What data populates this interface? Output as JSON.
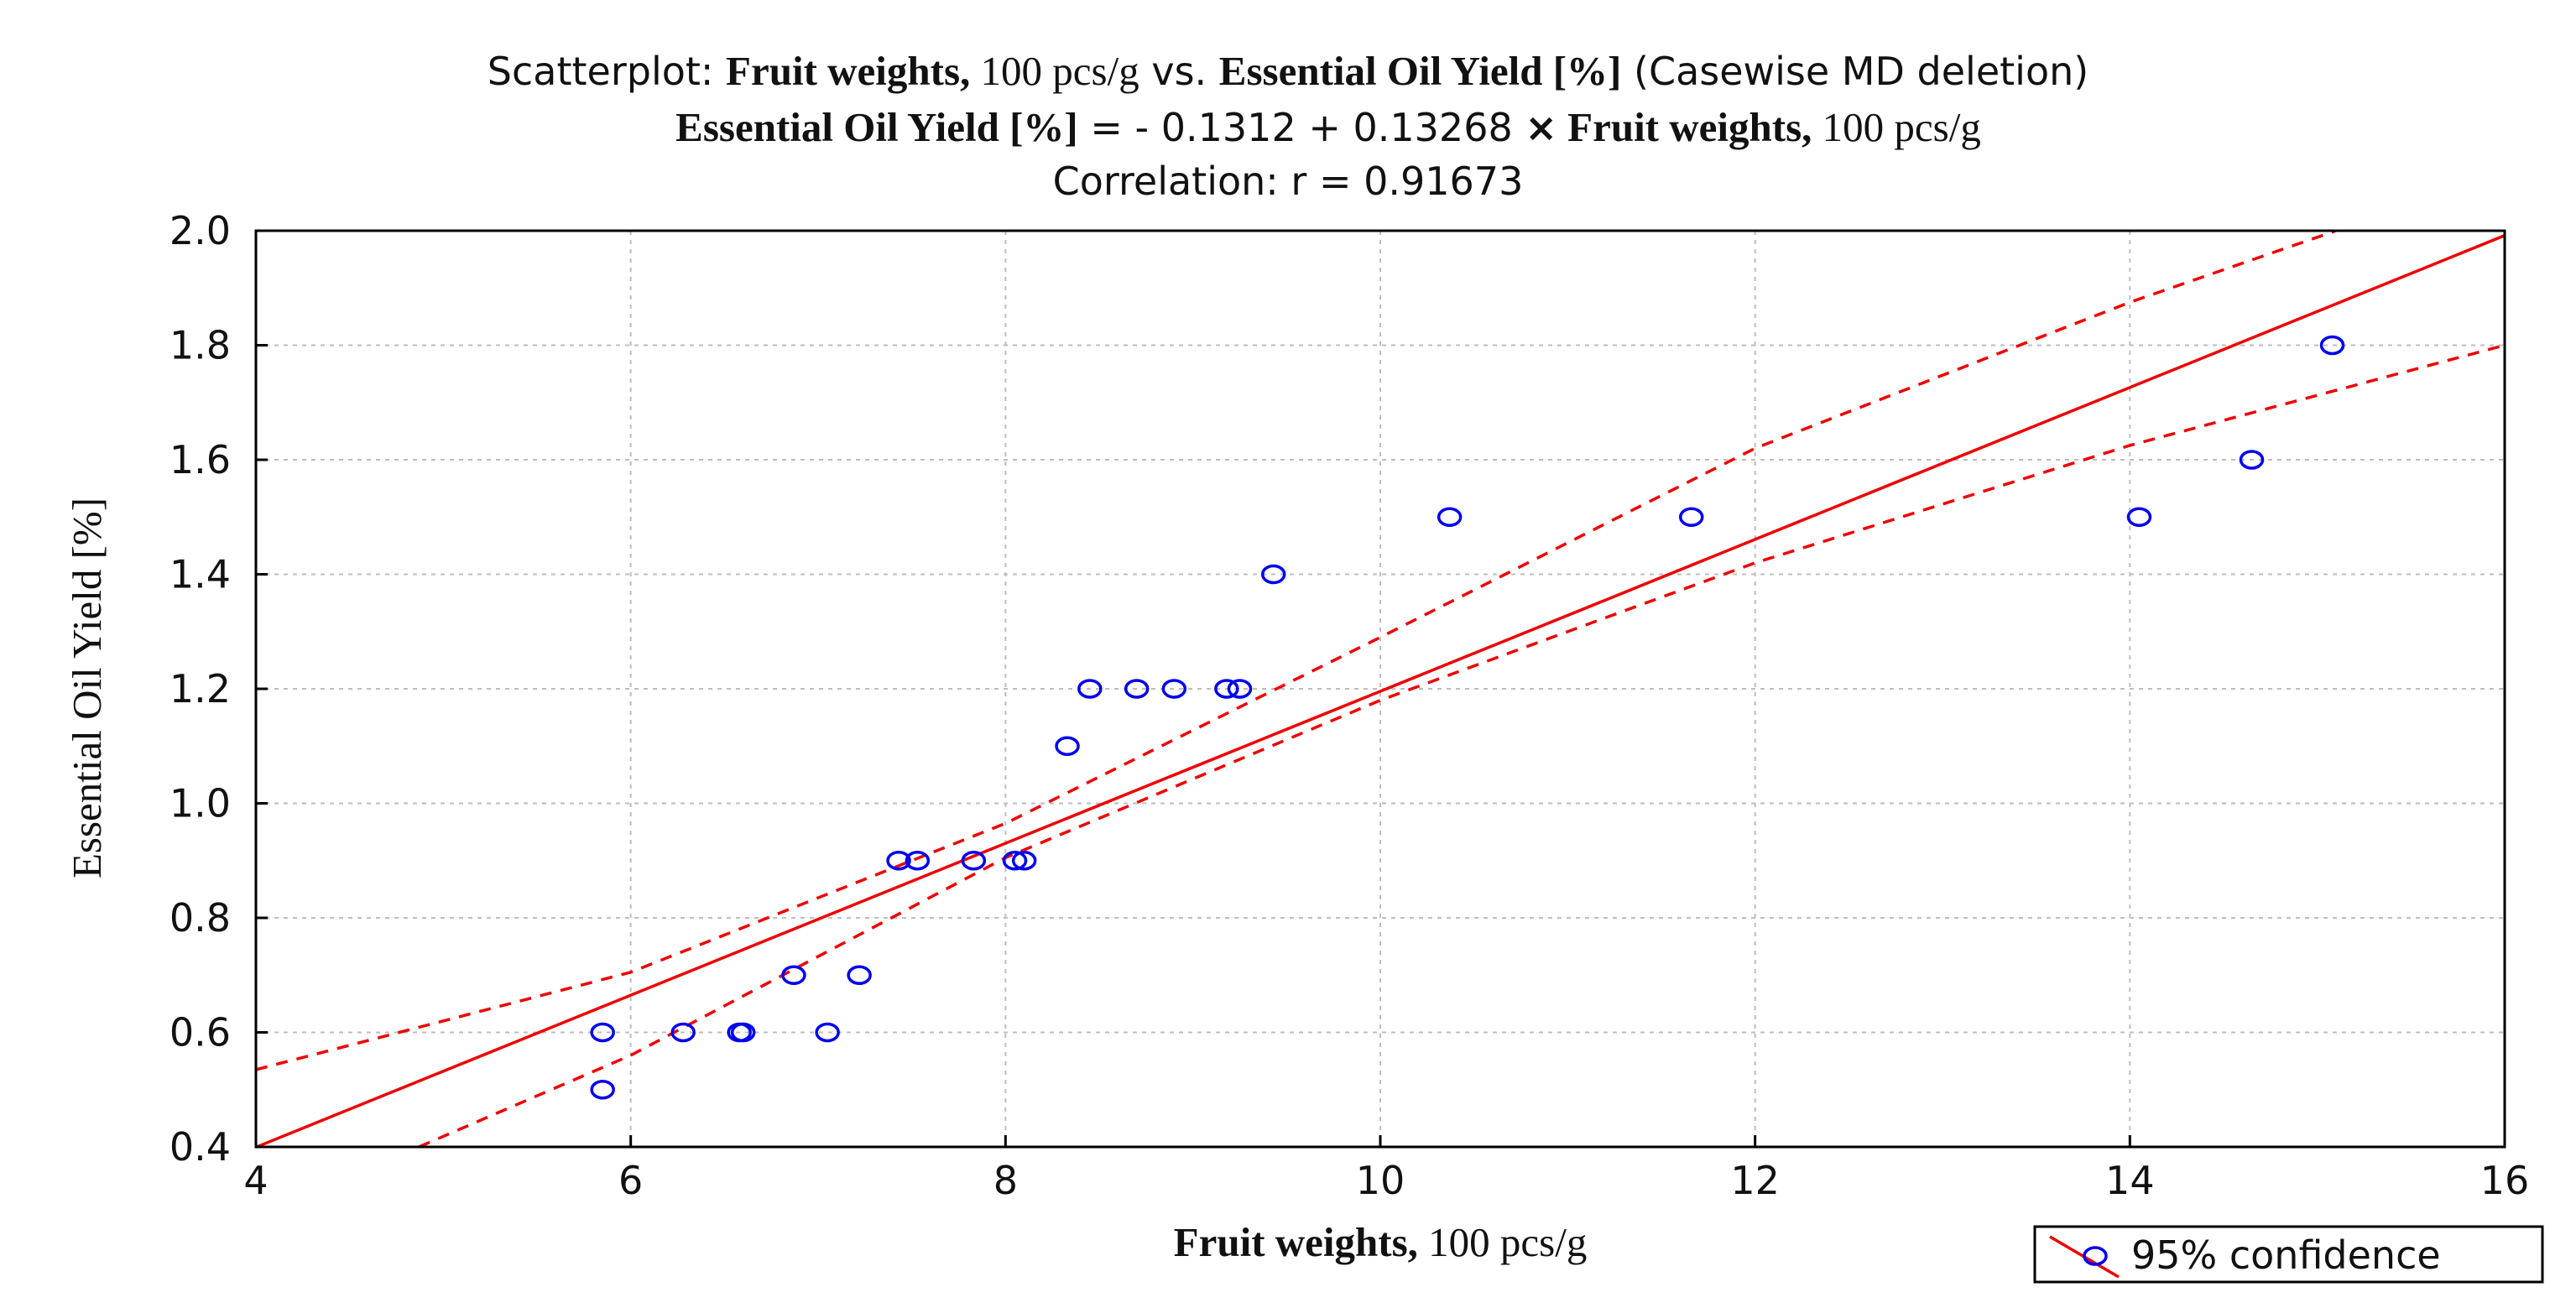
{
  "chart_data": {
    "type": "scatter",
    "title": {
      "prefix": "Scatterplot: ",
      "x_name_bold": "Fruit weights,",
      "x_name_rest": " 100 pcs/g",
      "mid": " vs. ",
      "y_name_bold": "Essential Oil Yield [%]",
      "suffix": " (Casewise MD deletion)"
    },
    "equation": {
      "lhs_bold": "Essential Oil Yield [%]",
      "middle": " = - 0.1312 +  0.13268 ",
      "times": "×",
      "rhs_bold": " Fruit weights,",
      "rhs_rest": " 100 pcs/g"
    },
    "correlation_text": "Correlation: r = 0.91673",
    "xlabel": {
      "bold": "Fruit weights,",
      "rest": " 100 pcs/g"
    },
    "ylabel": "Essential Oil Yield [%]",
    "xlim": [
      4,
      16
    ],
    "ylim": [
      0.4,
      2.0
    ],
    "xticks": [
      "4",
      "6",
      "8",
      "10",
      "12",
      "14",
      "16"
    ],
    "yticks": [
      "0.4",
      "0.6",
      "0.8",
      "1.0",
      "1.2",
      "1.4",
      "1.6",
      "1.8",
      "2.0"
    ],
    "grid": true,
    "points": [
      {
        "x": 5.85,
        "y": 0.6
      },
      {
        "x": 5.85,
        "y": 0.5
      },
      {
        "x": 6.28,
        "y": 0.6
      },
      {
        "x": 6.58,
        "y": 0.6
      },
      {
        "x": 6.6,
        "y": 0.6
      },
      {
        "x": 6.87,
        "y": 0.7
      },
      {
        "x": 7.05,
        "y": 0.6
      },
      {
        "x": 7.22,
        "y": 0.7
      },
      {
        "x": 7.43,
        "y": 0.9
      },
      {
        "x": 7.53,
        "y": 0.9
      },
      {
        "x": 7.83,
        "y": 0.9
      },
      {
        "x": 8.05,
        "y": 0.9
      },
      {
        "x": 8.1,
        "y": 0.9
      },
      {
        "x": 8.33,
        "y": 1.1
      },
      {
        "x": 8.45,
        "y": 1.2
      },
      {
        "x": 8.7,
        "y": 1.2
      },
      {
        "x": 8.9,
        "y": 1.2
      },
      {
        "x": 9.18,
        "y": 1.2
      },
      {
        "x": 9.25,
        "y": 1.2
      },
      {
        "x": 9.43,
        "y": 1.4
      },
      {
        "x": 10.37,
        "y": 1.5
      },
      {
        "x": 11.66,
        "y": 1.5
      },
      {
        "x": 14.05,
        "y": 1.5
      },
      {
        "x": 14.65,
        "y": 1.6
      },
      {
        "x": 15.08,
        "y": 1.8
      }
    ],
    "regression": {
      "intercept": -0.1312,
      "slope": 0.13268
    },
    "confidence_upper": [
      [
        4,
        0.535
      ],
      [
        6,
        0.705
      ],
      [
        8,
        0.965
      ],
      [
        10,
        1.29
      ],
      [
        12,
        1.62
      ],
      [
        14,
        1.875
      ],
      [
        15.1,
        2.0
      ]
    ],
    "confidence_lower": [
      [
        4.87,
        0.4
      ],
      [
        6,
        0.56
      ],
      [
        8,
        0.905
      ],
      [
        10,
        1.18
      ],
      [
        12,
        1.42
      ],
      [
        14,
        1.625
      ],
      [
        16,
        1.8
      ]
    ],
    "legend": {
      "label": "95% confidence",
      "position": "bottom-right"
    },
    "colors": {
      "points": "#0000ee",
      "regression": "#ee0000",
      "confidence": "#ee0000",
      "grid": "#bdbdbd",
      "axes": "#000000"
    }
  }
}
